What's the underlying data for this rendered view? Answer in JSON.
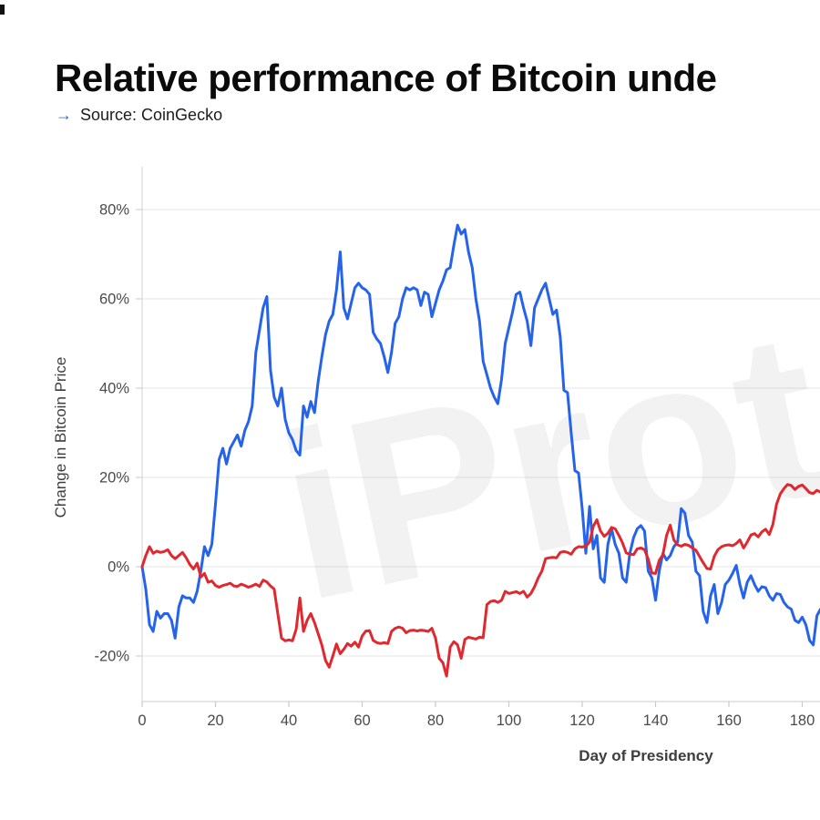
{
  "header": {
    "title": "Relative performance of Bitcoin unde",
    "source_arrow": "→",
    "source": "Source: CoinGecko",
    "accent_color": "#2563eb"
  },
  "watermark": "iProto",
  "chart_data": {
    "type": "line",
    "title": "Relative performance of Bitcoin unde (cropped)",
    "xlabel": "Day of Presidency",
    "ylabel": "Change in Bitcoin Price",
    "x_start": 0,
    "x_step": 1,
    "xlim": [
      0,
      185
    ],
    "ylim_visible": [
      -28,
      90
    ],
    "xticks": [
      0,
      20,
      40,
      60,
      80,
      100,
      120,
      140,
      160,
      180
    ],
    "yticks": [
      80,
      60,
      40,
      20,
      0,
      -20
    ],
    "ytick_suffix": "%",
    "grid": "horizontal",
    "legend_position": "none-visible",
    "series": [
      {
        "name": "blue",
        "color": "#2563eb",
        "values": [
          0,
          -5,
          -13,
          -14.5,
          -10,
          -11.5,
          -10.5,
          -10.5,
          -12,
          -16,
          -9,
          -6.5,
          -7,
          -7,
          -8,
          -5.5,
          -1,
          4.5,
          2.5,
          5,
          14,
          24,
          26.5,
          23,
          26.5,
          28,
          29.5,
          27,
          30.5,
          32.5,
          36,
          48,
          53,
          58,
          60.5,
          44,
          38,
          36,
          40,
          33,
          30,
          28.5,
          26,
          25,
          36,
          33.5,
          37,
          34.5,
          41.5,
          47,
          52,
          55,
          56.5,
          62,
          70.5,
          58,
          55.5,
          59,
          62.5,
          63.5,
          62.5,
          62,
          61,
          52.5,
          51,
          50,
          47,
          43.5,
          48,
          54.5,
          56,
          60,
          62.5,
          62,
          62.5,
          62,
          58.5,
          61.5,
          61,
          56,
          59,
          62,
          64,
          66.5,
          67,
          72,
          76.5,
          74.5,
          75.5,
          70.5,
          67,
          60,
          55,
          46,
          43,
          40,
          38,
          36.5,
          42,
          50,
          53.5,
          57,
          61,
          61.5,
          58,
          55,
          49.5,
          58,
          60,
          62,
          63.5,
          60,
          56.5,
          57.5,
          51.5,
          39.5,
          39,
          30,
          21.5,
          21,
          13,
          3,
          13.5,
          4,
          7,
          -2.5,
          -3.5,
          5,
          8.5,
          5,
          3,
          -2.5,
          -3.5,
          3,
          6.5,
          8.5,
          9.2,
          8,
          -1,
          -2.5,
          -7.5,
          -1,
          3,
          1.5,
          2.5,
          4.5,
          5.5,
          13,
          12,
          7,
          5.5,
          -1,
          -2,
          -10,
          -12.5,
          -6.5,
          -4,
          -10.5,
          -8,
          -4,
          -3,
          -1.5,
          0.3,
          -4,
          -7,
          -3.5,
          -2,
          -4,
          -5.5,
          -4.5,
          -4.7,
          -6.5,
          -7.5,
          -6,
          -6.2,
          -8,
          -9,
          -9.5,
          -12,
          -12.5,
          -11.3,
          -13,
          -16.5,
          -17.5,
          -11,
          -9.5
        ]
      },
      {
        "name": "red",
        "color": "#e0282f",
        "values": [
          0,
          2.5,
          4.5,
          3,
          3.5,
          3.2,
          3.4,
          3.8,
          2.5,
          1.8,
          2.5,
          3.2,
          2,
          0.5,
          -0.5,
          0.8,
          -2.3,
          -1.5,
          -3.5,
          -3.2,
          -4.2,
          -4.6,
          -4.2,
          -4,
          -3.7,
          -4.3,
          -4.4,
          -3.9,
          -4.2,
          -4.6,
          -4.3,
          -3.9,
          -4.4,
          -3,
          -3.4,
          -4.3,
          -5,
          -10.5,
          -16,
          -16.6,
          -16.4,
          -16.6,
          -14,
          -7,
          -14.5,
          -12,
          -10.5,
          -12.5,
          -15,
          -17.5,
          -21,
          -22.5,
          -20,
          -17.3,
          -19.5,
          -18.5,
          -17.2,
          -17.8,
          -16.9,
          -18,
          -15.5,
          -14.4,
          -14.3,
          -16.5,
          -17,
          -17.2,
          -17,
          -17.2,
          -14.5,
          -13.8,
          -13.5,
          -13.8,
          -14.8,
          -14.3,
          -14.2,
          -14.4,
          -14.2,
          -14.3,
          -14.5,
          -13.8,
          -16,
          -20.5,
          -21.5,
          -24.5,
          -18,
          -16.8,
          -17.5,
          -20.5,
          -16.3,
          -15.8,
          -16,
          -16.2,
          -15.8,
          -15.9,
          -8.5,
          -7.8,
          -7.6,
          -8,
          -7.5,
          -5.5,
          -6,
          -5.8,
          -5.6,
          -6,
          -5.5,
          -6.8,
          -6,
          -4.5,
          -2.5,
          -1,
          1.8,
          2,
          2.1,
          2,
          3.2,
          3.4,
          3.2,
          2.8,
          4,
          4.5,
          4.4,
          4.6,
          5.5,
          9,
          10.5,
          8,
          6.8,
          7.5,
          8.8,
          8.5,
          7,
          5.3,
          3.1,
          2.8,
          2.7,
          4,
          4.2,
          3.8,
          1.7,
          -1.4,
          -1.5,
          1.4,
          2.7,
          7,
          9.3,
          6,
          4.9,
          4.6,
          5,
          4.8,
          4.2,
          3.7,
          2.3,
          0.9,
          -0.4,
          -0.5,
          2.3,
          3.8,
          4.5,
          4.8,
          4.9,
          4.7,
          5.2,
          6,
          4.2,
          5.5,
          7.1,
          7.4,
          6.7,
          7.8,
          8.4,
          7.2,
          9.5,
          14,
          16.3,
          17.5,
          18.4,
          18.2,
          17.3,
          18,
          18.3,
          17.5,
          16.6,
          16.4,
          17.1,
          16.7
        ]
      }
    ]
  }
}
